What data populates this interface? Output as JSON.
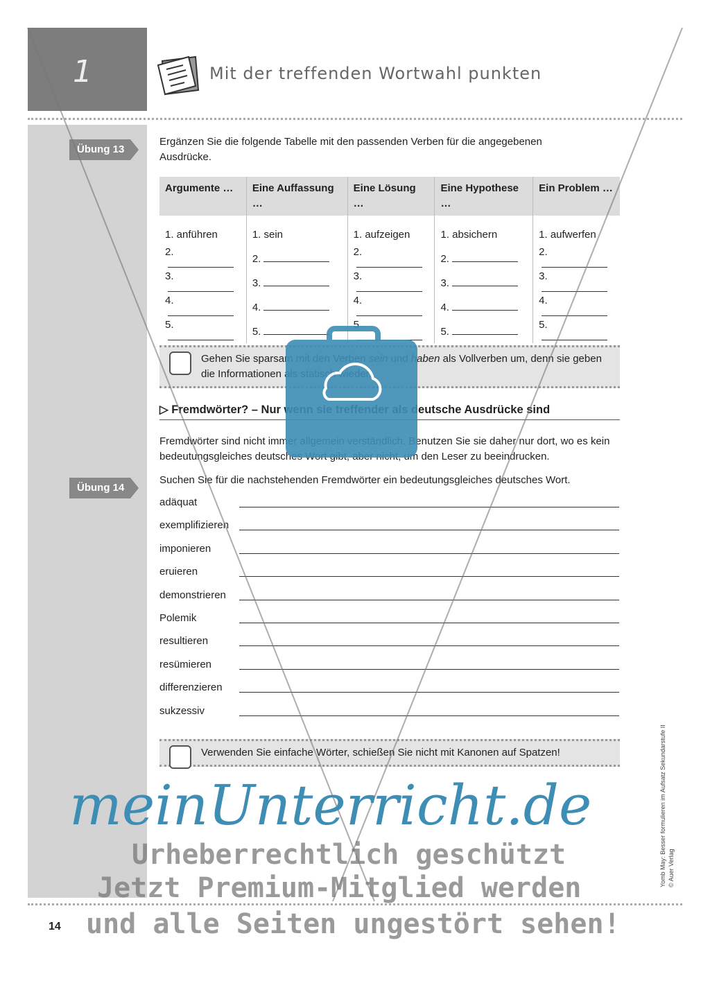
{
  "header": {
    "chapter": "1",
    "title": "Mit der treffenden Wortwahl punkten"
  },
  "ex13": {
    "tag": "Übung 13",
    "instruction": "Ergänzen Sie die folgende Tabelle mit den passenden Verben für die angegebenen Ausdrücke.",
    "columns": [
      "Argumente …",
      "Eine Auffassung …",
      "Eine Lösung …",
      "Eine Hypothese …",
      "Ein Problem …"
    ],
    "first_row": [
      "1. anführen",
      "1. sein",
      "1. aufzeigen",
      "1. absichern",
      "1. aufwerfen"
    ],
    "numbers": [
      "2.",
      "3.",
      "4.",
      "5."
    ]
  },
  "tip1": {
    "pre": "Gehen Sie sparsam mit den Verben ",
    "em1": "sein",
    "mid": " und ",
    "em2": "haben",
    "post": " als Vollverben um, denn sie geben die Informationen als statisch wieder."
  },
  "section": {
    "heading": "Fremdwörter? – Nur wenn sie treffender als deutsche Ausdrücke sind",
    "intro": "Fremdwörter sind nicht immer allgemein verständlich. Benutzen Sie sie daher nur dort, wo es kein bedeutungsgleiches deutsches Wort gibt, aber nicht, um den Leser zu beeindrucken."
  },
  "ex14": {
    "tag": "Übung 14",
    "instruction": "Suchen Sie für die nachstehenden Fremdwörter ein bedeutungsgleiches deutsches Wort.",
    "words": [
      "adäquat",
      "exemplifizieren",
      "imponieren",
      "eruieren",
      "demonstrieren",
      "Polemik",
      "resultieren",
      "resümieren",
      "differenzieren",
      "sukzessiv"
    ]
  },
  "tip2": {
    "text": "Verwenden Sie einfache Wörter, schießen Sie nicht mit Kanonen auf Spatzen!"
  },
  "footer": {
    "page": "14",
    "credit1": "Yomb May: Besser formulieren im Aufsatz Sekundarstufe II",
    "credit2": "© Auer Verlag"
  },
  "watermark": {
    "brand": "meinUnterricht.de",
    "line1": "Urheberrechtlich geschützt",
    "line2": "Jetzt Premium-Mitglied werden",
    "line3": "und alle Seiten ungestört sehen!",
    "brand_color": "#3d8db5"
  }
}
